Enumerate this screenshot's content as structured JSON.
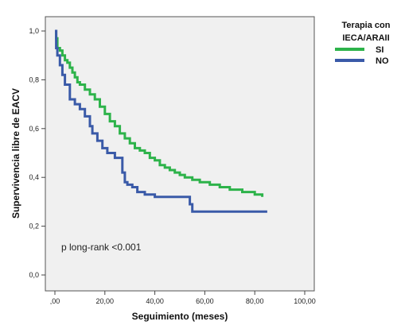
{
  "chart_data": {
    "type": "line",
    "xlabel": "Seguimiento (meses)",
    "ylabel": "Supervivencia libre de EACV",
    "xlim": [
      0,
      100
    ],
    "ylim": [
      0,
      1
    ],
    "xticks": [
      ",00",
      "20,00",
      "40,00",
      "60,00",
      "80,00",
      "100,00"
    ],
    "xtick_values": [
      0,
      20,
      40,
      60,
      80,
      100
    ],
    "yticks": [
      "0,0",
      "0,2",
      "0,4",
      "0,6",
      "0,8",
      "1,0"
    ],
    "ytick_values": [
      0,
      0.2,
      0.4,
      0.6,
      0.8,
      1.0
    ],
    "grid": false,
    "legend_title": "Terapia con IECA/ARAII",
    "legend_position": "top-right",
    "annotation": "p long-rank <0.001",
    "series": [
      {
        "name": "SI",
        "color": "#2db34a",
        "step": true,
        "x": [
          0,
          0.5,
          1,
          2,
          3,
          4,
          5,
          6,
          7,
          8,
          9,
          10,
          12,
          14,
          16,
          18,
          20,
          22,
          24,
          26,
          28,
          30,
          32,
          34,
          36,
          38,
          40,
          42,
          44,
          46,
          48,
          50,
          52,
          55,
          58,
          62,
          66,
          70,
          75,
          80,
          83
        ],
        "y": [
          1.0,
          0.97,
          0.93,
          0.92,
          0.9,
          0.88,
          0.87,
          0.85,
          0.83,
          0.81,
          0.79,
          0.78,
          0.76,
          0.74,
          0.72,
          0.69,
          0.66,
          0.63,
          0.61,
          0.58,
          0.56,
          0.54,
          0.52,
          0.51,
          0.5,
          0.48,
          0.47,
          0.45,
          0.44,
          0.43,
          0.42,
          0.41,
          0.4,
          0.39,
          0.38,
          0.37,
          0.36,
          0.35,
          0.34,
          0.33,
          0.32
        ]
      },
      {
        "name": "NO",
        "color": "#3a5aa8",
        "step": true,
        "x": [
          0,
          0.5,
          1,
          2,
          3,
          4,
          6,
          8,
          10,
          12,
          14,
          15,
          17,
          19,
          21,
          24,
          27,
          28,
          29,
          31,
          33,
          36,
          40,
          45,
          50,
          54,
          55,
          60,
          70,
          85
        ],
        "y": [
          1.0,
          0.93,
          0.9,
          0.86,
          0.82,
          0.78,
          0.72,
          0.7,
          0.68,
          0.65,
          0.61,
          0.58,
          0.55,
          0.52,
          0.5,
          0.48,
          0.42,
          0.38,
          0.37,
          0.36,
          0.34,
          0.33,
          0.32,
          0.32,
          0.32,
          0.29,
          0.26,
          0.26,
          0.26,
          0.26
        ]
      }
    ]
  }
}
